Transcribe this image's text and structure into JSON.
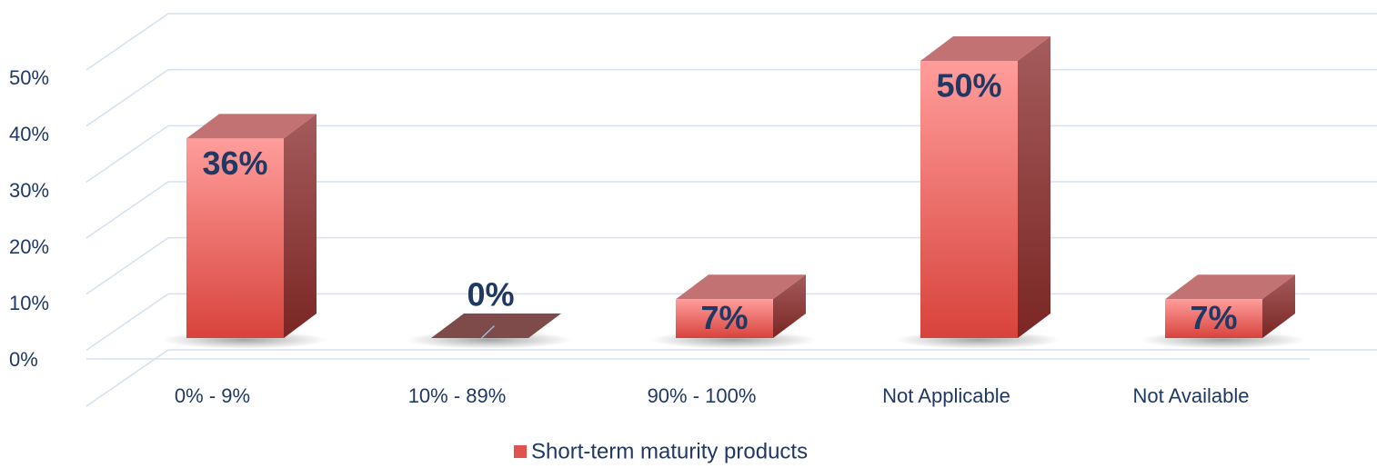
{
  "chart_data": {
    "type": "bar3d",
    "categories": [
      "0% - 9%",
      "10% - 89%",
      "90% - 100%",
      "Not Applicable",
      "Not Available"
    ],
    "series": [
      {
        "name": "Short-term maturity products",
        "color": "#e0544e",
        "values": [
          36,
          0,
          7,
          50,
          7
        ],
        "value_labels": [
          "36%",
          "0%",
          "7%",
          "50%",
          "7%"
        ]
      }
    ],
    "ylim": [
      0,
      60
    ],
    "yticks": [
      {
        "value": 0,
        "label": "0%"
      },
      {
        "value": 10,
        "label": "10%"
      },
      {
        "value": 20,
        "label": "20%"
      },
      {
        "value": 30,
        "label": "30%"
      },
      {
        "value": 40,
        "label": "40%"
      },
      {
        "value": 50,
        "label": "50%"
      }
    ],
    "grid": true,
    "legend": "bottom"
  }
}
